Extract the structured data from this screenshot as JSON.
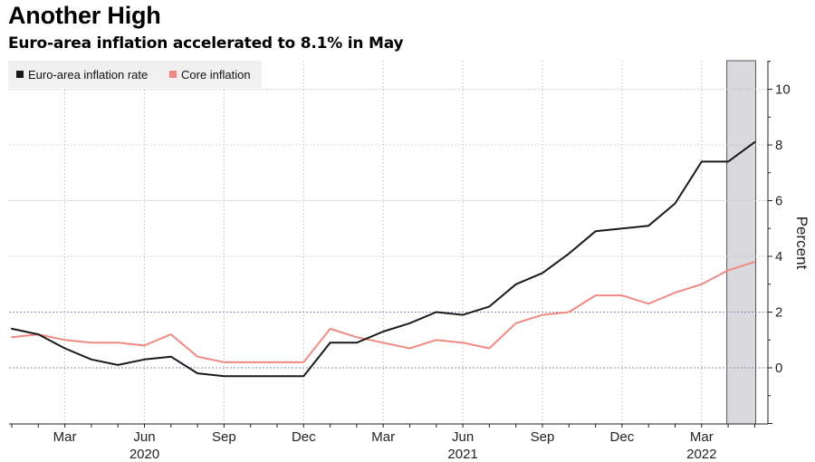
{
  "title": "Another High",
  "subtitle": "Euro-area inflation accelerated to 8.1% in May",
  "colors": {
    "headline": "#1a1a1a",
    "core": "#f08a82",
    "shade": "#d9d9de",
    "grid": "#bdbdd0"
  },
  "chart_data": {
    "type": "line",
    "title": "Another High",
    "subtitle": "Euro-area inflation accelerated to 8.1% in May",
    "ylabel": "Percent",
    "xlabel": "",
    "ylim": [
      -2,
      11
    ],
    "yticks": [
      0,
      2,
      4,
      6,
      8,
      10
    ],
    "grid": true,
    "legend_position": "top-left",
    "x": [
      "2020-01",
      "2020-02",
      "2020-03",
      "2020-04",
      "2020-05",
      "2020-06",
      "2020-07",
      "2020-08",
      "2020-09",
      "2020-10",
      "2020-11",
      "2020-12",
      "2021-01",
      "2021-02",
      "2021-03",
      "2021-04",
      "2021-05",
      "2021-06",
      "2021-07",
      "2021-08",
      "2021-09",
      "2021-10",
      "2021-11",
      "2021-12",
      "2022-01",
      "2022-02",
      "2022-03",
      "2022-04",
      "2022-05"
    ],
    "x_ticks": [
      {
        "month": "2020-03",
        "label": "Mar"
      },
      {
        "month": "2020-06",
        "label": "Jun"
      },
      {
        "month": "2020-09",
        "label": "Sep"
      },
      {
        "month": "2020-12",
        "label": "Dec"
      },
      {
        "month": "2021-03",
        "label": "Mar"
      },
      {
        "month": "2021-06",
        "label": "Jun"
      },
      {
        "month": "2021-09",
        "label": "Sep"
      },
      {
        "month": "2021-12",
        "label": "Dec"
      },
      {
        "month": "2022-03",
        "label": "Mar"
      }
    ],
    "year_labels": [
      {
        "month": "2020-06",
        "label": "2020"
      },
      {
        "month": "2021-06",
        "label": "2021"
      },
      {
        "month": "2022-03",
        "label": "2022"
      }
    ],
    "shaded_range": [
      "2022-04",
      "2022-05"
    ],
    "series": [
      {
        "name": "Euro-area inflation rate",
        "color": "#1a1a1a",
        "values": [
          1.4,
          1.2,
          0.7,
          0.3,
          0.1,
          0.3,
          0.4,
          -0.2,
          -0.3,
          -0.3,
          -0.3,
          -0.3,
          0.9,
          0.9,
          1.3,
          1.6,
          2.0,
          1.9,
          2.2,
          3.0,
          3.4,
          4.1,
          4.9,
          5.0,
          5.1,
          5.9,
          7.4,
          7.4,
          8.1
        ]
      },
      {
        "name": "Core inflation",
        "color": "#f08a82",
        "values": [
          1.1,
          1.2,
          1.0,
          0.9,
          0.9,
          0.8,
          1.2,
          0.4,
          0.2,
          0.2,
          0.2,
          0.2,
          1.4,
          1.1,
          0.9,
          0.7,
          1.0,
          0.9,
          0.7,
          1.6,
          1.9,
          2.0,
          2.6,
          2.6,
          2.3,
          2.7,
          3.0,
          3.5,
          3.8
        ]
      }
    ]
  }
}
